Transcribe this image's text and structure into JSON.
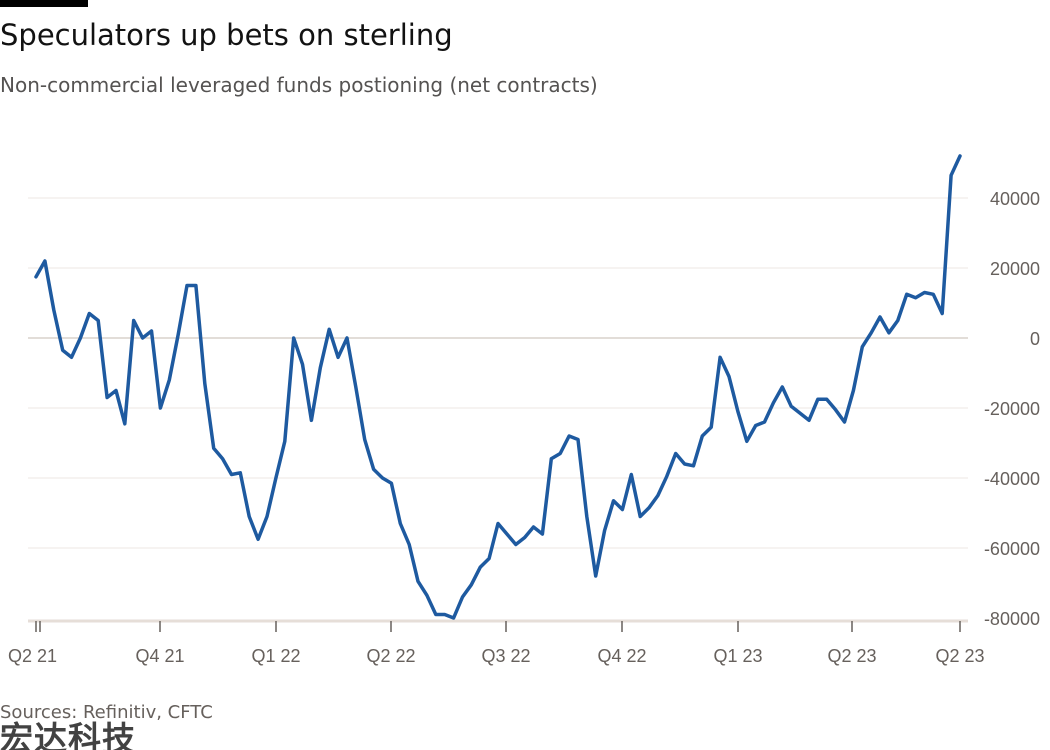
{
  "header": {
    "title": "Speculators up bets on sterling",
    "subtitle": "Non-commercial leveraged funds postioning (net contracts)"
  },
  "footer": {
    "source": "Sources: Refinitiv, CFTC",
    "watermark": "宏达科技"
  },
  "colors": {
    "line": "#1e5aa0",
    "grid": "#ece7e3",
    "zero_line": "#d9d2cc",
    "axis_text": "#66605c"
  },
  "chart_data": {
    "type": "line",
    "title": "Speculators up bets on sterling",
    "subtitle": "Non-commercial leveraged funds postioning (net contracts)",
    "xlabel": "",
    "ylabel": "",
    "x_ticks": [
      "Q2 21",
      "Q4 21",
      "Q1 22",
      "Q2 22",
      "Q3 22",
      "Q4 22",
      "Q1 23",
      "Q2 23",
      "Q2 23"
    ],
    "y_ticks": [
      40000,
      20000,
      0,
      -20000,
      -40000,
      -60000,
      -80000
    ],
    "y_tick_labels": [
      "40000",
      "20000",
      "0",
      "-20000",
      "-40000",
      "-60000",
      "-80000"
    ],
    "ylim": [
      -80000,
      55000
    ],
    "x_range_weeks": [
      0,
      104
    ],
    "grid": true,
    "y_axis_side": "right",
    "series": [
      {
        "values": [
          17500,
          22000,
          8000,
          -3500,
          -5500,
          0,
          7000,
          5000,
          -17000,
          -15000,
          -24500,
          5000,
          0,
          2000,
          -20000,
          -12000,
          1000,
          15000,
          15000,
          -13000,
          -31500,
          -34500,
          -39000,
          -38500,
          -51000,
          -57500,
          -51000,
          -40000,
          -29500,
          0,
          -7500,
          -23500,
          -8500,
          2500,
          -5500,
          0,
          -14000,
          -29000,
          -37500,
          -40000,
          -41500,
          -53000,
          -59000,
          -69500,
          -73500,
          -79000,
          -79000,
          -80000,
          -74000,
          -70500,
          -65500,
          -63000,
          -53000,
          -56000,
          -59000,
          -57000,
          -54000,
          -56000,
          -34500,
          -33000,
          -28000,
          -29000,
          -51000,
          -68000,
          -55000,
          -46500,
          -49000,
          -39000,
          -51000,
          -48500,
          -45000,
          -39500,
          -33000,
          -36000,
          -36500,
          -28000,
          -25500,
          -5500,
          -11000,
          -21000,
          -29500,
          -25000,
          -24000,
          -18500,
          -14000,
          -19500,
          -21500,
          -23500,
          -17500,
          -17500,
          -20500,
          -24000,
          -15000,
          -2500,
          1500,
          6000,
          1500,
          5000,
          12500,
          11500,
          13000,
          12500,
          7000,
          46500,
          52000
        ]
      }
    ]
  }
}
